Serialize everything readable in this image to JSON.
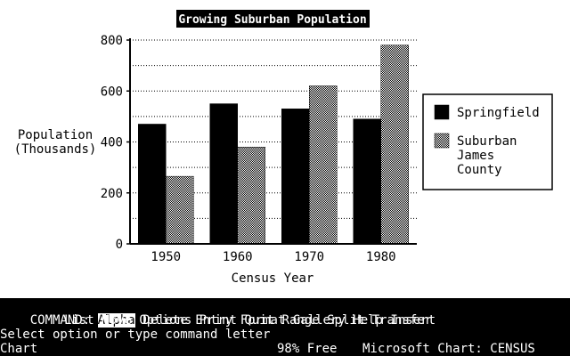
{
  "chart_data": {
    "type": "bar",
    "title": "Growing Suburban Population",
    "xlabel": "Census Year",
    "ylabel": [
      "Population",
      "(Thousands)"
    ],
    "categories": [
      "1950",
      "1960",
      "1970",
      "1980"
    ],
    "series": [
      {
        "name": "Springfield",
        "values": [
          470,
          550,
          530,
          490
        ],
        "pattern": "solid"
      },
      {
        "name": "Suburban James County",
        "values": [
          265,
          380,
          620,
          780
        ],
        "pattern": "checker"
      }
    ],
    "legend_lines": [
      [
        "Springfield"
      ],
      [
        "Suburban",
        "James",
        "County"
      ]
    ],
    "ylim": [
      0,
      800
    ],
    "yticks": [
      0,
      200,
      400,
      600,
      800
    ],
    "grid": true,
    "legend_position": "right"
  },
  "command": {
    "prefix": "COMMAND:",
    "menu_row1": [
      "Alpha",
      "Delete",
      "Entry",
      "Format",
      "Gallery",
      "Help",
      "Insert"
    ],
    "menu_row2": [
      "List",
      "Move",
      "Options",
      "Print",
      "Quit",
      "Range",
      "Split",
      "Transfer"
    ],
    "highlighted": "Alpha",
    "prompt": "Select option or type command letter"
  },
  "status": {
    "mode": "Chart",
    "free": "98% Free",
    "app": "Microsoft Chart: CENSUS"
  },
  "colors": {
    "foreground": "#000000",
    "background": "#ffffff"
  }
}
